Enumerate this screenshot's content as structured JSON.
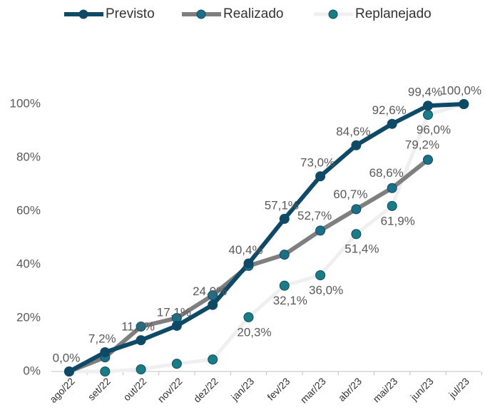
{
  "chart_data": {
    "type": "line",
    "categories": [
      "ago/22",
      "set/22",
      "out/22",
      "nov/22",
      "dez/22",
      "jan/23",
      "fev/23",
      "mar/23",
      "abr/23",
      "mai/23",
      "jun/23",
      "jul/23"
    ],
    "series": [
      {
        "name": "Previsto",
        "color": "#0e4a66",
        "marker_color": "#0e4a66",
        "values": [
          0,
          7.2,
          11.7,
          17.1,
          24.9,
          40.4,
          57.1,
          73.0,
          84.6,
          92.6,
          99.4,
          100.0
        ],
        "value_labels": [
          "0,0%",
          "7,2%",
          "11,7%",
          "17,1%",
          "24,9%",
          "40,4%",
          "57,1%",
          "73,0%",
          "84,6%",
          "92,6%",
          "99,4%",
          "100,0%"
        ]
      },
      {
        "name": "Realizado",
        "color": "#7f7f7f",
        "marker_color": "#1d6f88",
        "values": [
          0,
          5.3,
          16.8,
          20.0,
          28.5,
          39.5,
          43.7,
          52.7,
          60.7,
          68.6,
          79.2,
          null
        ],
        "value_labels": [
          null,
          null,
          null,
          null,
          null,
          null,
          null,
          "52,7%",
          "60,7%",
          "68,6%",
          "79,2%",
          null
        ]
      },
      {
        "name": "Replanejado",
        "color": "#efefef",
        "marker_color": "#1a7d85",
        "values": [
          0,
          0,
          0.8,
          2.9,
          4.5,
          20.3,
          32.1,
          36.0,
          51.4,
          61.9,
          96.0,
          100.0
        ],
        "value_labels": [
          null,
          null,
          null,
          null,
          null,
          "20,3%",
          "32,1%",
          "36,0%",
          "51,4%",
          "61,9%",
          "96,0%",
          null
        ]
      }
    ],
    "ylim": [
      0,
      100
    ],
    "yticks": [
      {
        "value": 0,
        "label": "0%"
      },
      {
        "value": 20,
        "label": "20%"
      },
      {
        "value": 40,
        "label": "40%"
      },
      {
        "value": 60,
        "label": "60%"
      },
      {
        "value": 80,
        "label": "80%"
      },
      {
        "value": 100,
        "label": "100%"
      }
    ],
    "legend": "top"
  }
}
